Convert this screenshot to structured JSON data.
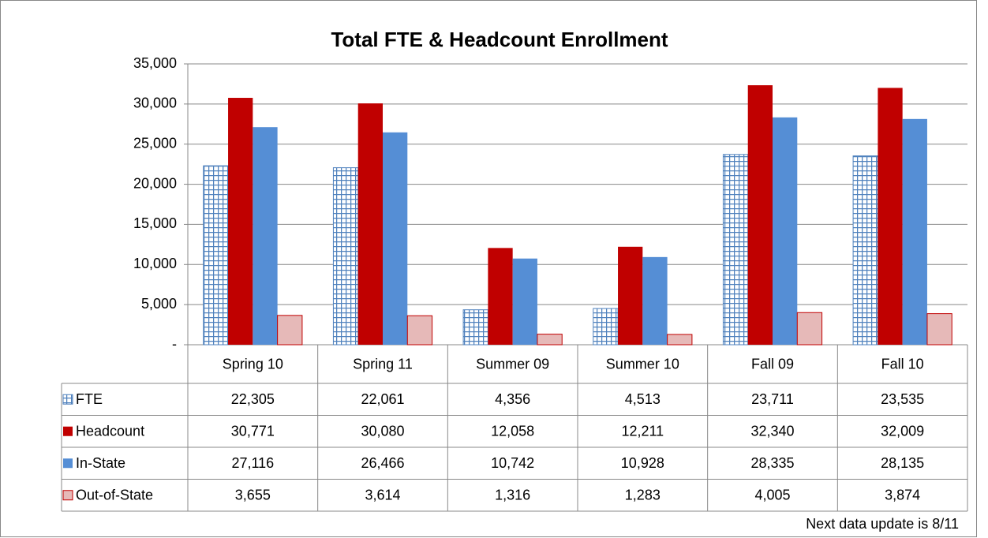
{
  "chart_data": {
    "type": "bar",
    "title": "Total FTE & Headcount Enrollment",
    "categories": [
      "Spring 10",
      "Spring 11",
      "Summer 09",
      "Summer 10",
      "Fall 09",
      "Fall 10"
    ],
    "series": [
      {
        "name": "FTE",
        "color": "#4f81bd",
        "hatch": "grid",
        "values": [
          22305,
          22061,
          4356,
          4513,
          23711,
          23535
        ],
        "value_labels": [
          "22,305",
          "22,061",
          "4,356",
          "4,513",
          "23,711",
          "23,535"
        ]
      },
      {
        "name": "Headcount",
        "color": "#c00000",
        "values": [
          30771,
          30080,
          12058,
          12211,
          32340,
          32009
        ],
        "value_labels": [
          "30,771",
          "30,080",
          "12,058",
          "12,211",
          "32,340",
          "32,009"
        ]
      },
      {
        "name": "In-State",
        "color": "#558ed5",
        "values": [
          27116,
          26466,
          10742,
          10928,
          28335,
          28135
        ],
        "value_labels": [
          "27,116",
          "26,466",
          "10,742",
          "10,928",
          "28,335",
          "28,135"
        ]
      },
      {
        "name": "Out-of-State",
        "color": "#e6b9b8",
        "edgecolor": "#c00000",
        "values": [
          3655,
          3614,
          1316,
          1283,
          4005,
          3874
        ],
        "value_labels": [
          "3,655",
          "3,614",
          "1,316",
          "1,283",
          "4,005",
          "3,874"
        ]
      }
    ],
    "ylim": [
      0,
      35000
    ],
    "yticks": [
      {
        "value": 0,
        "label": "-"
      },
      {
        "value": 5000,
        "label": "5,000"
      },
      {
        "value": 10000,
        "label": "10,000"
      },
      {
        "value": 15000,
        "label": "15,000"
      },
      {
        "value": 20000,
        "label": "20,000"
      },
      {
        "value": 25000,
        "label": "25,000"
      },
      {
        "value": 30000,
        "label": "30,000"
      },
      {
        "value": 35000,
        "label": "35,000"
      }
    ],
    "grid": true,
    "note": "Next data update is 8/11"
  }
}
